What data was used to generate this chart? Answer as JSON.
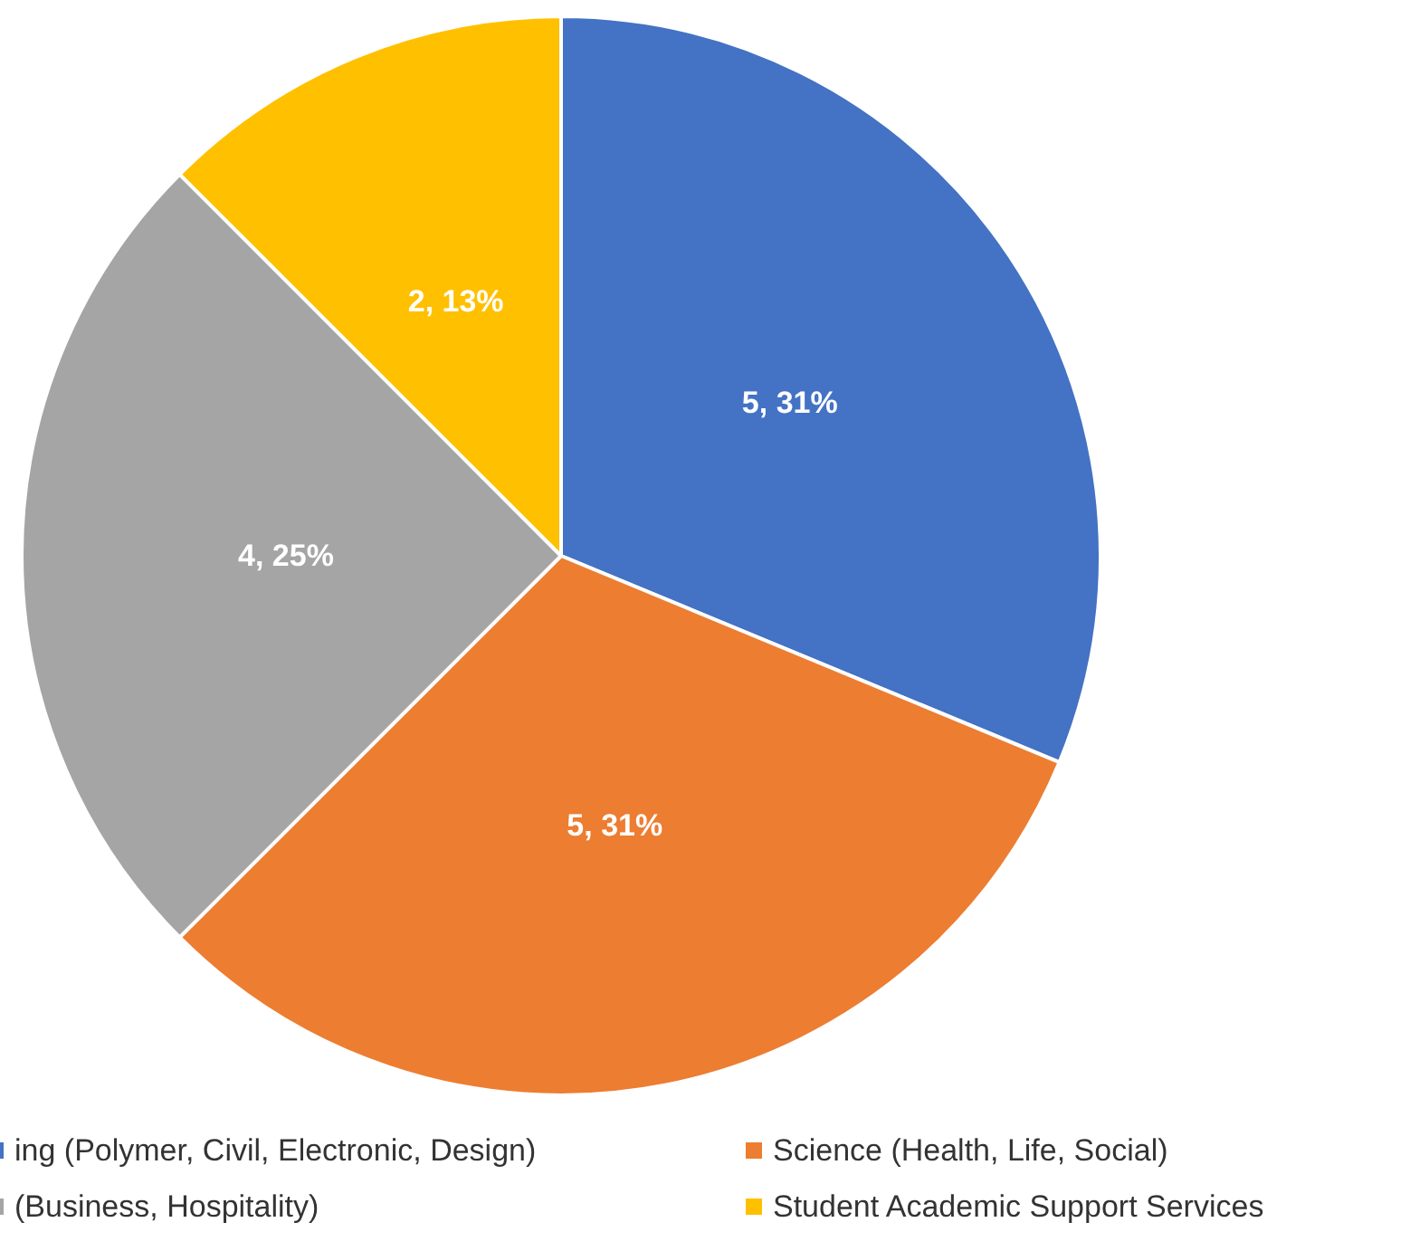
{
  "chart_data": {
    "type": "pie",
    "categories": [
      "ing (Polymer, Civil, Electronic, Design)",
      "Science (Health, Life, Social)",
      "(Business, Hospitality)",
      "Student Academic Support Services"
    ],
    "values": [
      5,
      5,
      4,
      2
    ],
    "colors": [
      "#4472c4",
      "#ed7d31",
      "#a5a5a5",
      "#ffc000"
    ],
    "value_labels": [
      "5, 31%",
      "5, 31%",
      "4, 25%",
      "2, 13%"
    ],
    "legend": "bottom"
  }
}
